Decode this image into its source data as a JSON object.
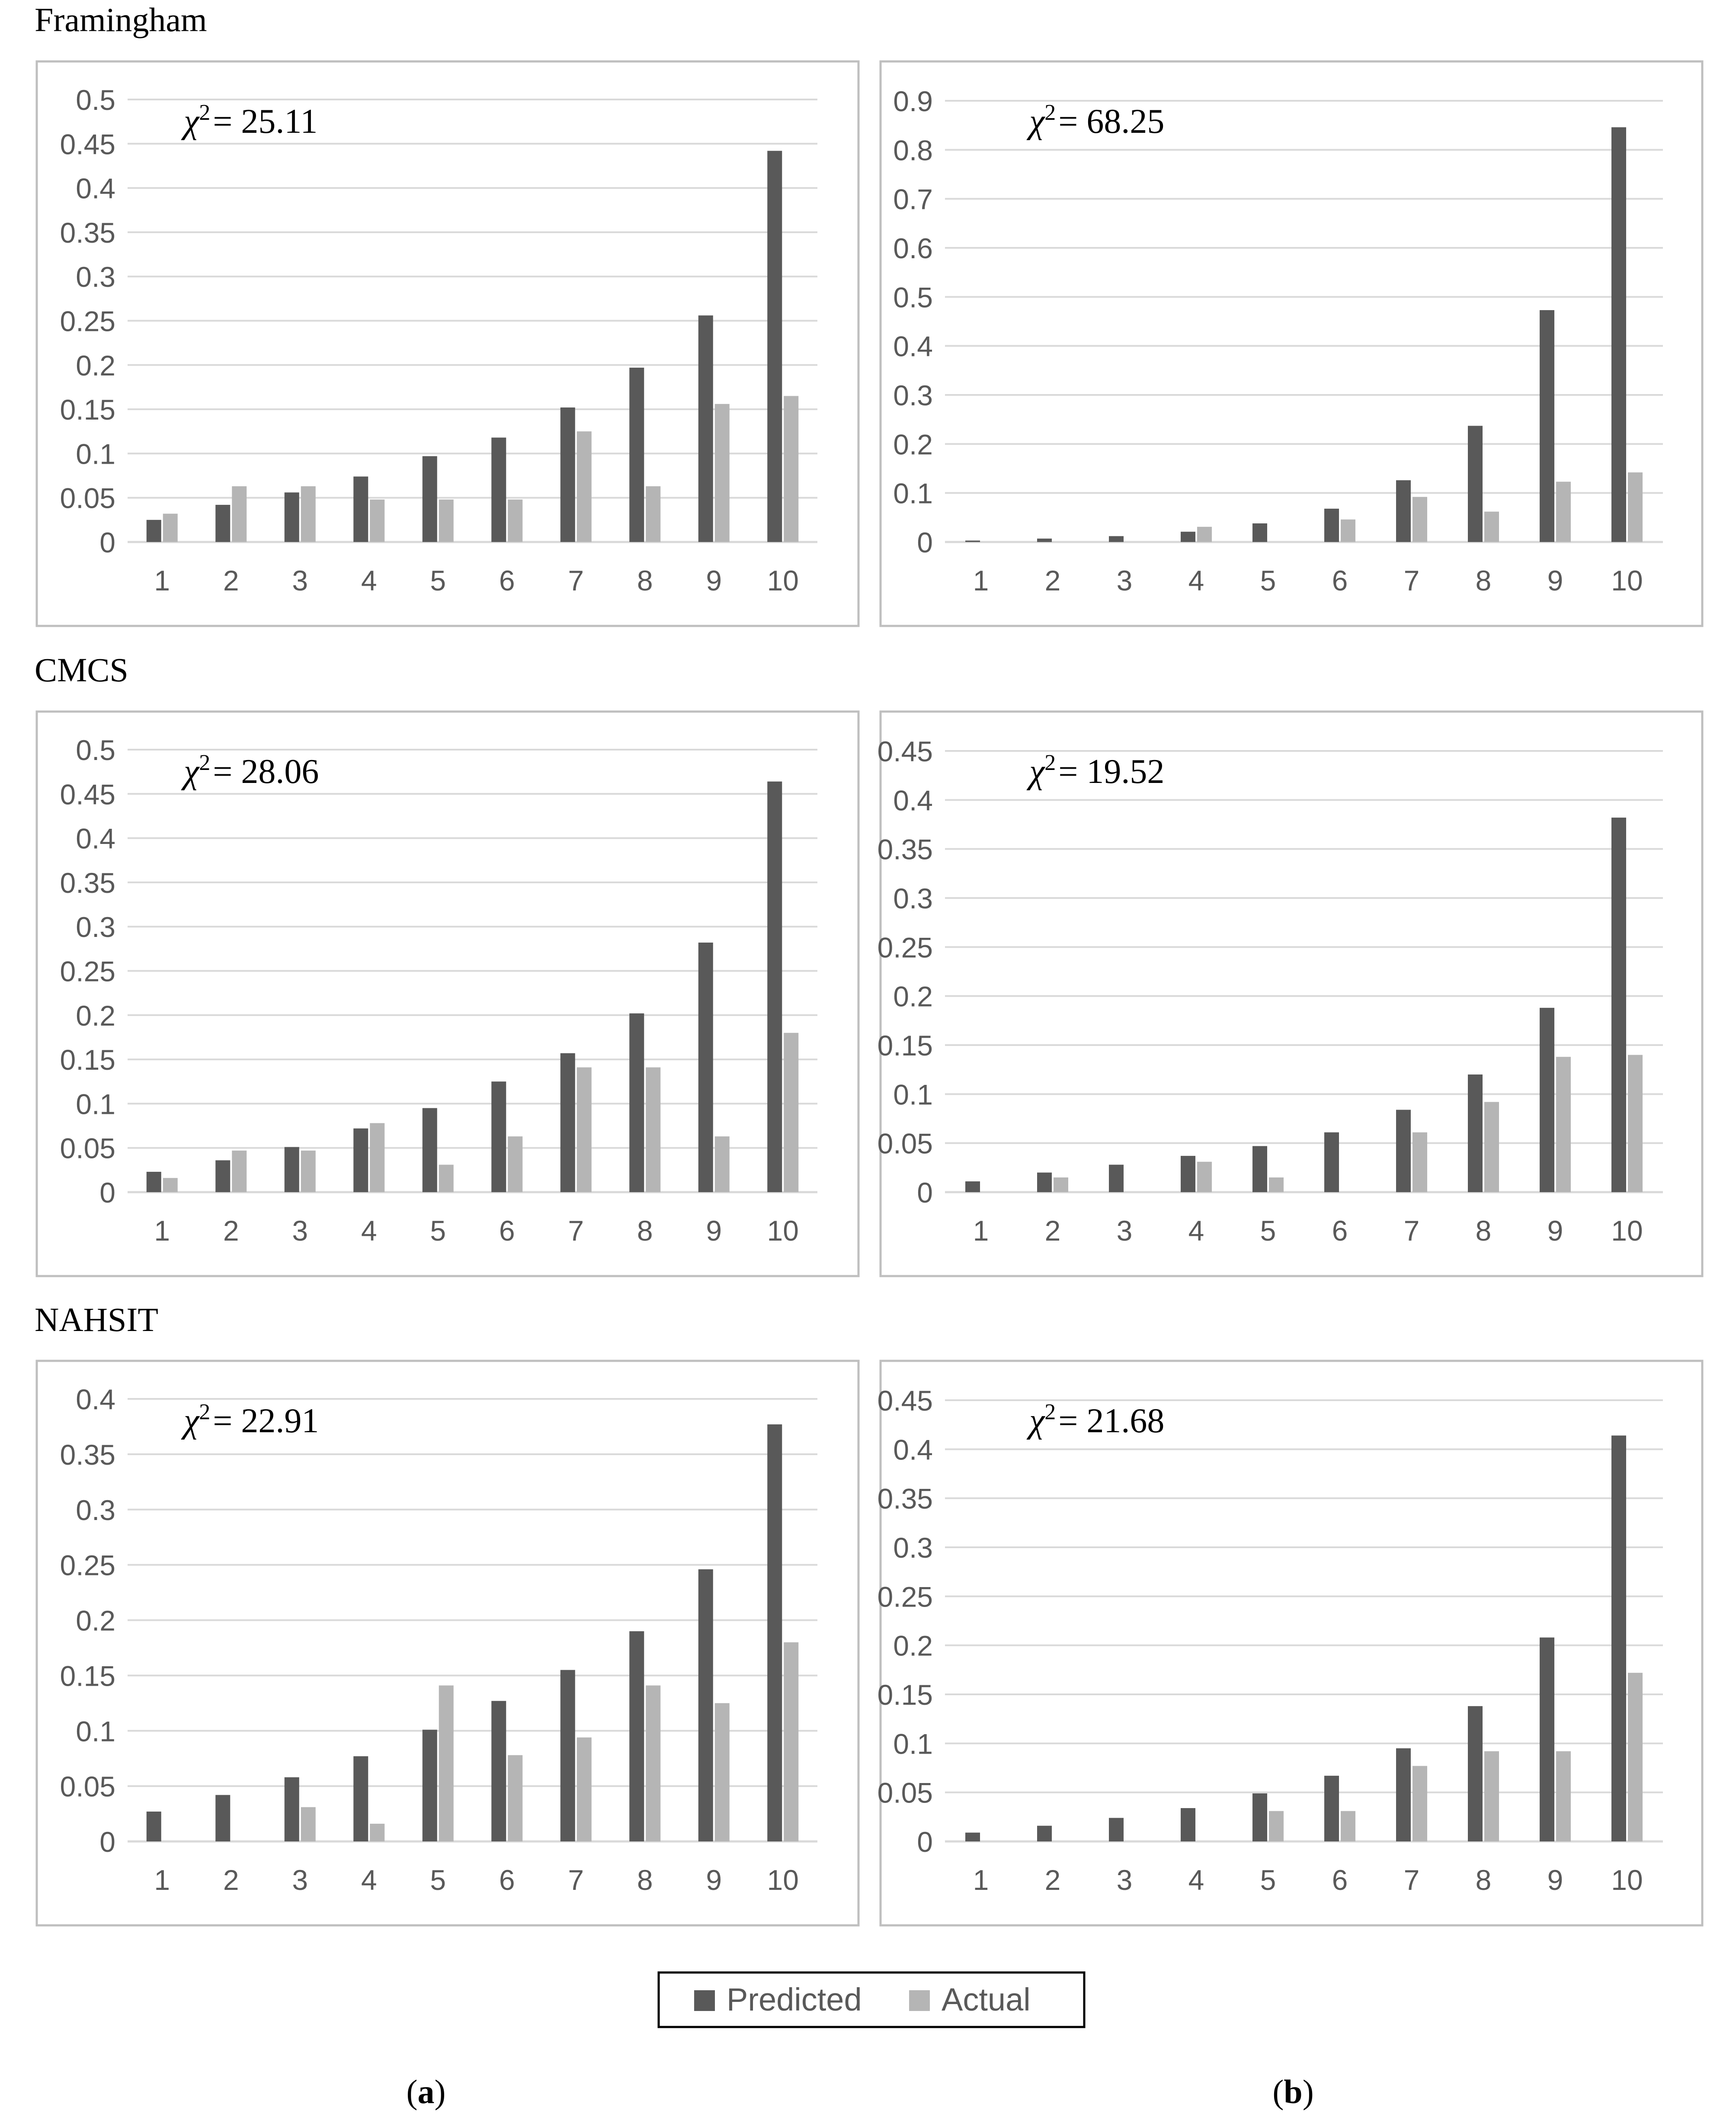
{
  "figure": {
    "section_titles": [
      "Framingham",
      "CMCS",
      "NAHSIT"
    ],
    "column_labels": [
      "a",
      "b"
    ],
    "legend": {
      "items": [
        {
          "label": "Predicted",
          "color": "#595959"
        },
        {
          "label": "Actual",
          "color": "#b5b5b5"
        }
      ],
      "placement": "bottom-center"
    },
    "colors": {
      "predicted": "#595959",
      "actual": "#b5b5b5",
      "grid": "#d9d9d9",
      "axis_text": "#595959",
      "frame": "#bfbfbf"
    }
  },
  "chart_data": [
    {
      "id": "framingham-a",
      "type": "bar",
      "section": "Framingham",
      "column": "a",
      "annotation": {
        "symbol": "χ",
        "sup": "2",
        "value": "= 25.11"
      },
      "categories": [
        "1",
        "2",
        "3",
        "4",
        "5",
        "6",
        "7",
        "8",
        "9",
        "10"
      ],
      "series": [
        {
          "name": "Predicted",
          "values": [
            0.025,
            0.042,
            0.056,
            0.074,
            0.097,
            0.118,
            0.152,
            0.197,
            0.256,
            0.442
          ]
        },
        {
          "name": "Actual",
          "values": [
            0.032,
            0.063,
            0.063,
            0.048,
            0.048,
            0.048,
            0.125,
            0.063,
            0.156,
            0.165
          ]
        }
      ],
      "yticks": [
        "0",
        "0.05",
        "0.1",
        "0.15",
        "0.2",
        "0.25",
        "0.3",
        "0.35",
        "0.4",
        "0.45",
        "0.5"
      ],
      "ylim": [
        0,
        0.5
      ],
      "xlabel": "",
      "ylabel": ""
    },
    {
      "id": "framingham-b",
      "type": "bar",
      "section": "Framingham",
      "column": "b",
      "annotation": {
        "symbol": "χ",
        "sup": "2",
        "value": "= 68.25"
      },
      "categories": [
        "1",
        "2",
        "3",
        "4",
        "5",
        "6",
        "7",
        "8",
        "9",
        "10"
      ],
      "series": [
        {
          "name": "Predicted",
          "values": [
            0.003,
            0.007,
            0.012,
            0.021,
            0.038,
            0.068,
            0.126,
            0.237,
            0.473,
            0.846
          ]
        },
        {
          "name": "Actual",
          "values": [
            0.0,
            0.0,
            0.0,
            0.031,
            0.0,
            0.046,
            0.092,
            0.062,
            0.123,
            0.142
          ]
        }
      ],
      "yticks": [
        "0",
        "0.1",
        "0.2",
        "0.3",
        "0.4",
        "0.5",
        "0.6",
        "0.7",
        "0.8",
        "0.9"
      ],
      "ylim": [
        0,
        0.9
      ],
      "xlabel": "",
      "ylabel": ""
    },
    {
      "id": "cmcs-a",
      "type": "bar",
      "section": "CMCS",
      "column": "a",
      "annotation": {
        "symbol": "χ",
        "sup": "2",
        "value": "= 28.06"
      },
      "categories": [
        "1",
        "2",
        "3",
        "4",
        "5",
        "6",
        "7",
        "8",
        "9",
        "10"
      ],
      "series": [
        {
          "name": "Predicted",
          "values": [
            0.023,
            0.036,
            0.051,
            0.072,
            0.095,
            0.125,
            0.157,
            0.202,
            0.282,
            0.464
          ]
        },
        {
          "name": "Actual",
          "values": [
            0.016,
            0.047,
            0.047,
            0.078,
            0.031,
            0.063,
            0.141,
            0.141,
            0.063,
            0.18
          ]
        }
      ],
      "yticks": [
        "0",
        "0.05",
        "0.1",
        "0.15",
        "0.2",
        "0.25",
        "0.3",
        "0.35",
        "0.4",
        "0.45",
        "0.5"
      ],
      "ylim": [
        0,
        0.5
      ],
      "xlabel": "",
      "ylabel": ""
    },
    {
      "id": "cmcs-b",
      "type": "bar",
      "section": "CMCS",
      "column": "b",
      "annotation": {
        "symbol": "χ",
        "sup": "2",
        "value": "= 19.52"
      },
      "categories": [
        "1",
        "2",
        "3",
        "4",
        "5",
        "6",
        "7",
        "8",
        "9",
        "10"
      ],
      "series": [
        {
          "name": "Predicted",
          "values": [
            0.011,
            0.02,
            0.028,
            0.037,
            0.047,
            0.061,
            0.084,
            0.12,
            0.188,
            0.382
          ]
        },
        {
          "name": "Actual",
          "values": [
            0.0,
            0.015,
            0.0,
            0.031,
            0.015,
            0.0,
            0.061,
            0.092,
            0.138,
            0.14
          ]
        }
      ],
      "yticks": [
        "0",
        "0.05",
        "0.1",
        "0.15",
        "0.2",
        "0.25",
        "0.3",
        "0.35",
        "0.4",
        "0.45"
      ],
      "ylim": [
        0,
        0.45
      ],
      "xlabel": "",
      "ylabel": ""
    },
    {
      "id": "nahsit-a",
      "type": "bar",
      "section": "NAHSIT",
      "column": "a",
      "annotation": {
        "symbol": "χ",
        "sup": "2",
        "value": "= 22.91"
      },
      "categories": [
        "1",
        "2",
        "3",
        "4",
        "5",
        "6",
        "7",
        "8",
        "9",
        "10"
      ],
      "series": [
        {
          "name": "Predicted",
          "values": [
            0.027,
            0.042,
            0.058,
            0.077,
            0.101,
            0.127,
            0.155,
            0.19,
            0.246,
            0.377
          ]
        },
        {
          "name": "Actual",
          "values": [
            0.0,
            0.0,
            0.031,
            0.016,
            0.141,
            0.078,
            0.094,
            0.141,
            0.125,
            0.18
          ]
        }
      ],
      "yticks": [
        "0",
        "0.05",
        "0.1",
        "0.15",
        "0.2",
        "0.25",
        "0.3",
        "0.35",
        "0.4"
      ],
      "ylim": [
        0,
        0.4
      ],
      "xlabel": "",
      "ylabel": ""
    },
    {
      "id": "nahsit-b",
      "type": "bar",
      "section": "NAHSIT",
      "column": "b",
      "annotation": {
        "symbol": "χ",
        "sup": "2",
        "value": "= 21.68"
      },
      "categories": [
        "1",
        "2",
        "3",
        "4",
        "5",
        "6",
        "7",
        "8",
        "9",
        "10"
      ],
      "series": [
        {
          "name": "Predicted",
          "values": [
            0.009,
            0.016,
            0.024,
            0.034,
            0.049,
            0.067,
            0.095,
            0.138,
            0.208,
            0.414
          ]
        },
        {
          "name": "Actual",
          "values": [
            0.0,
            0.0,
            0.0,
            0.0,
            0.031,
            0.031,
            0.077,
            0.092,
            0.092,
            0.172
          ]
        }
      ],
      "yticks": [
        "0",
        "0.05",
        "0.1",
        "0.15",
        "0.2",
        "0.25",
        "0.3",
        "0.35",
        "0.4",
        "0.45"
      ],
      "ylim": [
        0,
        0.45
      ],
      "xlabel": "",
      "ylabel": ""
    }
  ]
}
